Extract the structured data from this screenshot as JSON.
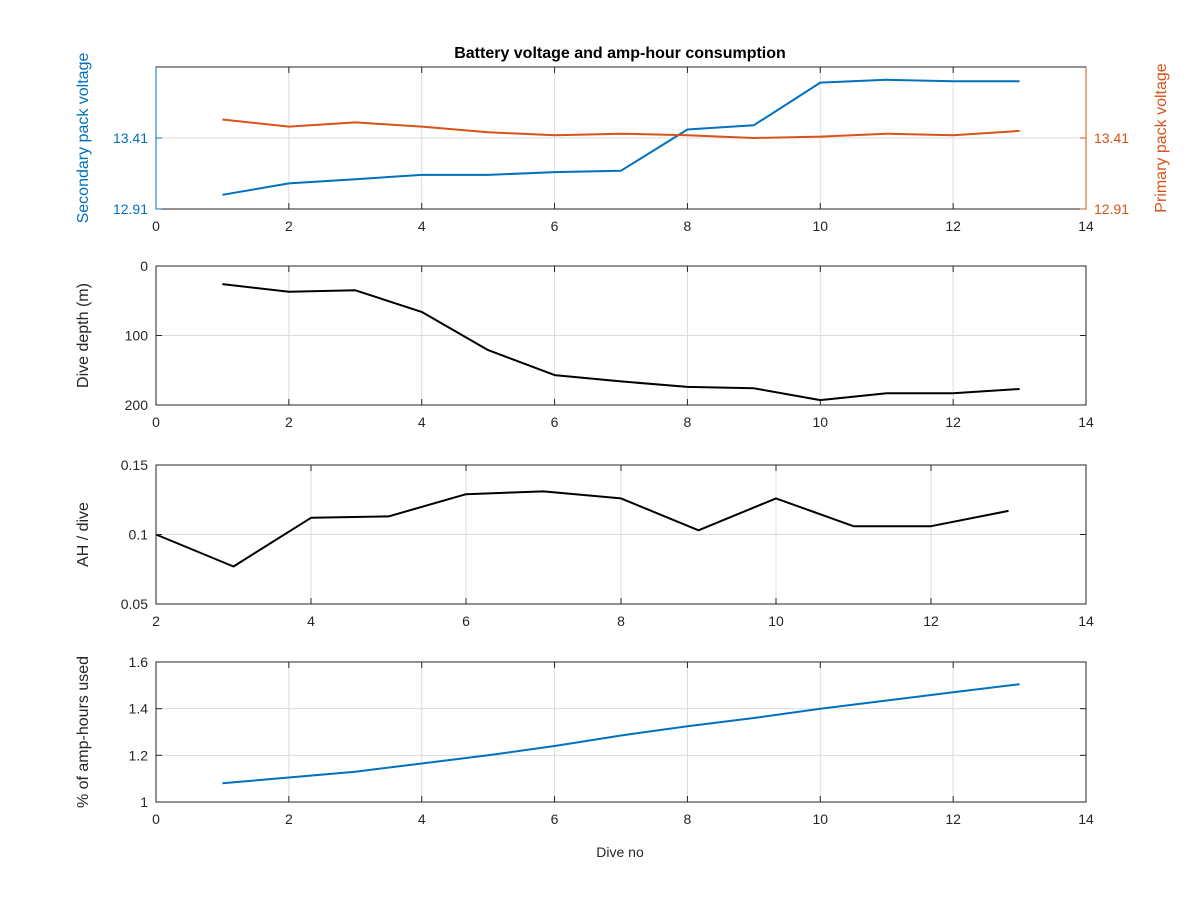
{
  "colors": {
    "blue": "#0072BD",
    "orange": "#D95319",
    "black": "#000000",
    "grid": "#dcdcdc",
    "axis": "#262626"
  },
  "chart_data": [
    {
      "type": "line",
      "title": "Battery voltage and amp-hour consumption",
      "xlabel": "",
      "xlim": [
        0,
        14
      ],
      "xticks": [
        0,
        2,
        4,
        6,
        8,
        10,
        12,
        14
      ],
      "yaxes": [
        {
          "side": "left",
          "label": "Secondary pack voltage",
          "ylim": [
            12.91,
            13.91
          ],
          "ticks": [
            12.91,
            13.41
          ],
          "color": "#0072BD"
        },
        {
          "side": "right",
          "label": "Primary pack voltage",
          "ylim": [
            12.91,
            13.91
          ],
          "ticks": [
            12.91,
            13.41
          ],
          "color": "#D95319"
        }
      ],
      "grid": true,
      "series": [
        {
          "axis": "left",
          "color": "#0072BD",
          "x": [
            1,
            2,
            3,
            4,
            5,
            6,
            7,
            8,
            9,
            10,
            11,
            12,
            13
          ],
          "y": [
            13.01,
            13.09,
            13.12,
            13.15,
            13.15,
            13.17,
            13.18,
            13.47,
            13.5,
            13.8,
            13.82,
            13.81,
            13.81
          ]
        },
        {
          "axis": "right",
          "color": "#D95319",
          "x": [
            1,
            2,
            3,
            4,
            5,
            6,
            7,
            8,
            9,
            10,
            11,
            12,
            13
          ],
          "y": [
            13.54,
            13.49,
            13.52,
            13.49,
            13.45,
            13.43,
            13.44,
            13.43,
            13.41,
            13.42,
            13.44,
            13.43,
            13.46
          ]
        }
      ]
    },
    {
      "type": "line",
      "title": "",
      "xlabel": "",
      "ylabel": "Dive depth (m)",
      "xlim": [
        0,
        14
      ],
      "ylim": [
        0,
        200
      ],
      "yreversed": true,
      "xticks": [
        0,
        2,
        4,
        6,
        8,
        10,
        12,
        14
      ],
      "yticks": [
        0,
        100,
        200
      ],
      "grid": true,
      "series": [
        {
          "color": "#000000",
          "x": [
            1,
            2,
            3,
            4,
            5,
            6,
            7,
            8,
            9,
            10,
            11,
            12,
            13
          ],
          "y": [
            26,
            37,
            35,
            66,
            121,
            157,
            166,
            174,
            176,
            193,
            183,
            183,
            177
          ]
        }
      ]
    },
    {
      "type": "line",
      "title": "",
      "xlabel": "",
      "ylabel": "AH / dive",
      "xlim": [
        2,
        14
      ],
      "ylim": [
        0.05,
        0.15
      ],
      "xticks": [
        2,
        4,
        6,
        8,
        10,
        12,
        14
      ],
      "yticks": [
        0.05,
        0.1,
        0.15
      ],
      "grid": true,
      "series": [
        {
          "color": "#000000",
          "x": [
            2,
            3,
            4,
            5,
            6,
            7,
            8,
            9,
            10,
            11,
            12,
            13
          ],
          "y": [
            0.1,
            0.077,
            0.112,
            0.113,
            0.129,
            0.131,
            0.126,
            0.103,
            0.126,
            0.106,
            0.106,
            0.117
          ]
        }
      ]
    },
    {
      "type": "line",
      "title": "",
      "xlabel": "Dive no",
      "ylabel": "% of amp-hours used",
      "xlim": [
        0,
        14
      ],
      "ylim": [
        1,
        1.6
      ],
      "xticks": [
        0,
        2,
        4,
        6,
        8,
        10,
        12,
        14
      ],
      "yticks": [
        1,
        1.2,
        1.4,
        1.6
      ],
      "grid": true,
      "series": [
        {
          "color": "#0072BD",
          "x": [
            1,
            2,
            3,
            4,
            5,
            6,
            7,
            8,
            9,
            10,
            11,
            12,
            13
          ],
          "y": [
            1.08,
            1.105,
            1.13,
            1.165,
            1.2,
            1.24,
            1.285,
            1.325,
            1.36,
            1.4,
            1.435,
            1.47,
            1.505
          ]
        }
      ]
    }
  ]
}
